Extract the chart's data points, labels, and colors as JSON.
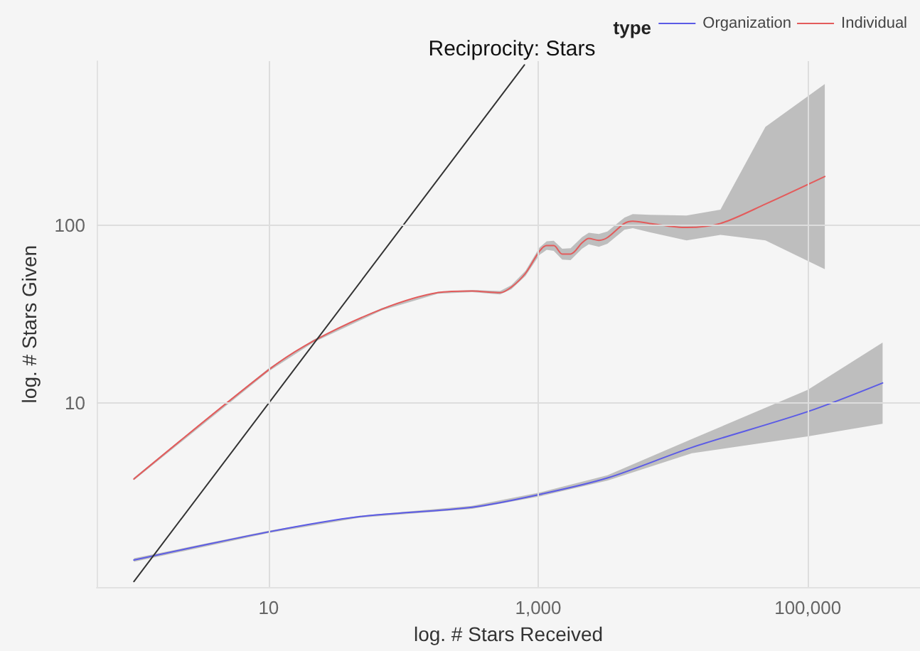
{
  "chart_data": {
    "type": "line",
    "title": "Reciprocity: Stars",
    "xlabel": "log. # Stars Received",
    "ylabel": "log. # Stars Given",
    "legend_title": "type",
    "legend": "top right",
    "grid": true,
    "log": "xy",
    "xlim": [
      0.53,
      680000
    ],
    "ylim": [
      0.93,
      830
    ],
    "xticks": [
      10,
      {
        "value": 1000,
        "label": "1,000"
      },
      {
        "value": 100000,
        "label": "100,000"
      }
    ],
    "yticks": [
      10,
      100
    ],
    "series": [
      {
        "name": "Organization",
        "color": "#5b5be6",
        "x": [
          1,
          10,
          47,
          323,
          1023,
          3260,
          13800,
          100000,
          359000
        ],
        "values": [
          1.32,
          1.9,
          2.31,
          2.61,
          3.08,
          3.81,
          5.65,
          8.98,
          13.0
        ],
        "lower": [
          1.29,
          1.87,
          2.28,
          2.56,
          3.0,
          3.68,
          5.25,
          6.52,
          7.67
        ],
        "upper": [
          1.35,
          1.93,
          2.34,
          2.66,
          3.16,
          3.95,
          6.3,
          11.9,
          21.9
        ]
      },
      {
        "name": "Individual",
        "color": "#e35b5b",
        "x": [
          1,
          10,
          21.6,
          69,
          180,
          323,
          521,
          632,
          805,
          1023,
          1156,
          1304,
          1507,
          1740,
          2112,
          2371,
          2820,
          3260,
          4360,
          5030,
          6700,
          12600,
          22500,
          48500,
          133700
        ],
        "values": [
          3.76,
          15.4,
          22.4,
          33.7,
          41.7,
          42.6,
          41.7,
          44.8,
          53.6,
          71.3,
          76.6,
          76.6,
          68.7,
          68.7,
          79.3,
          84,
          82,
          85,
          102,
          105,
          102,
          96.8,
          102,
          131,
          187
        ],
        "lower": [
          3.7,
          15.1,
          22.0,
          33.2,
          41.2,
          42.0,
          40.8,
          43.6,
          51.8,
          68.0,
          72.5,
          71.5,
          64.0,
          63.5,
          73.5,
          78.0,
          75.5,
          78.5,
          94,
          96,
          91,
          82,
          88,
          82,
          56.5
        ],
        "upper": [
          3.82,
          15.7,
          22.8,
          34.2,
          42.2,
          43.2,
          42.6,
          46.0,
          55.4,
          74.8,
          81.0,
          81.5,
          73.5,
          74.0,
          85.5,
          90.5,
          89,
          92,
          110,
          115,
          114,
          113,
          122,
          355,
          617
        ]
      },
      {
        "color": "#333333",
        "x": [
          1,
          790
        ],
        "values": [
          1,
          790
        ]
      }
    ]
  }
}
